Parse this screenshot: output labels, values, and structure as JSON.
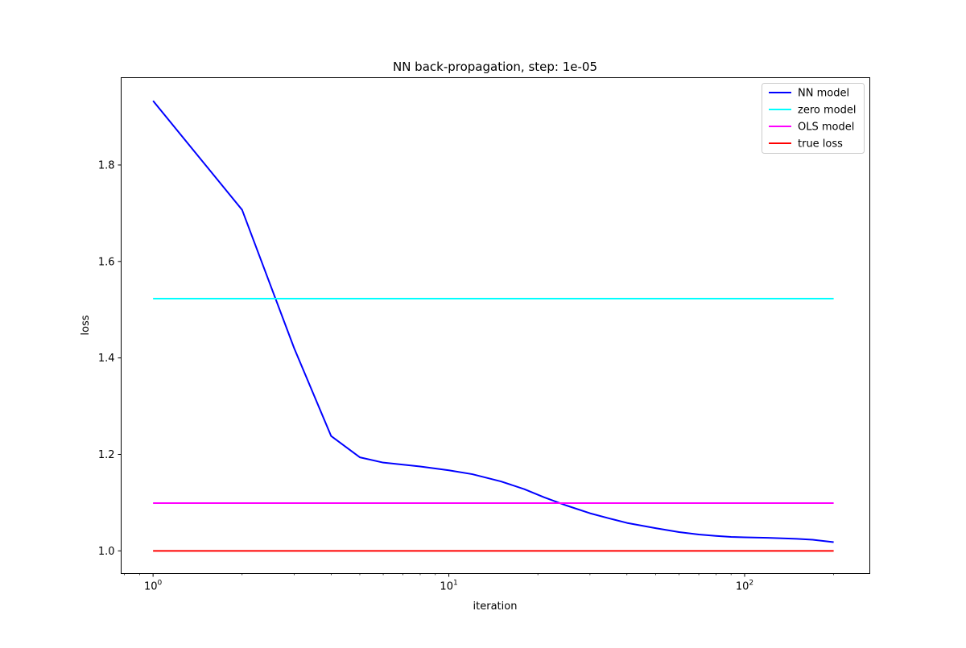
{
  "chart_data": {
    "type": "line",
    "title": "NN back-propagation, step: 1e-05",
    "xlabel": "iteration",
    "ylabel": "loss",
    "xscale": "log",
    "xlim": [
      0.78,
      265
    ],
    "ylim": [
      0.953,
      1.981
    ],
    "x_ticks": [
      {
        "value": 1,
        "base": "10",
        "exp": "0"
      },
      {
        "value": 10,
        "base": "10",
        "exp": "1"
      },
      {
        "value": 100,
        "base": "10",
        "exp": "2"
      }
    ],
    "y_ticks": [
      {
        "value": 1.0,
        "label": "1.0"
      },
      {
        "value": 1.2,
        "label": "1.2"
      },
      {
        "value": 1.4,
        "label": "1.4"
      },
      {
        "value": 1.6,
        "label": "1.6"
      },
      {
        "value": 1.8,
        "label": "1.8"
      }
    ],
    "legend_position": "top-right",
    "grid": false,
    "series": [
      {
        "name": "NN model",
        "color": "#0000ff",
        "points": [
          [
            1,
            1.933
          ],
          [
            2,
            1.707
          ],
          [
            3,
            1.42
          ],
          [
            4,
            1.238
          ],
          [
            5,
            1.194
          ],
          [
            6,
            1.183
          ],
          [
            8,
            1.175
          ],
          [
            10,
            1.167
          ],
          [
            12,
            1.159
          ],
          [
            15,
            1.144
          ],
          [
            18,
            1.128
          ],
          [
            21,
            1.111
          ],
          [
            25,
            1.094
          ],
          [
            30,
            1.078
          ],
          [
            35,
            1.067
          ],
          [
            40,
            1.058
          ],
          [
            50,
            1.047
          ],
          [
            60,
            1.039
          ],
          [
            70,
            1.034
          ],
          [
            80,
            1.031
          ],
          [
            90,
            1.029
          ],
          [
            100,
            1.028
          ],
          [
            120,
            1.027
          ],
          [
            150,
            1.025
          ],
          [
            170,
            1.023
          ],
          [
            200,
            1.018
          ]
        ]
      },
      {
        "name": "zero model",
        "color": "#00ffff",
        "points": [
          [
            1,
            1.523
          ],
          [
            200,
            1.523
          ]
        ]
      },
      {
        "name": "OLS model",
        "color": "#ff00ff",
        "points": [
          [
            1,
            1.099
          ],
          [
            200,
            1.099
          ]
        ]
      },
      {
        "name": "true loss",
        "color": "#ff0000",
        "points": [
          [
            1,
            1.0
          ],
          [
            200,
            1.0
          ]
        ]
      }
    ]
  }
}
